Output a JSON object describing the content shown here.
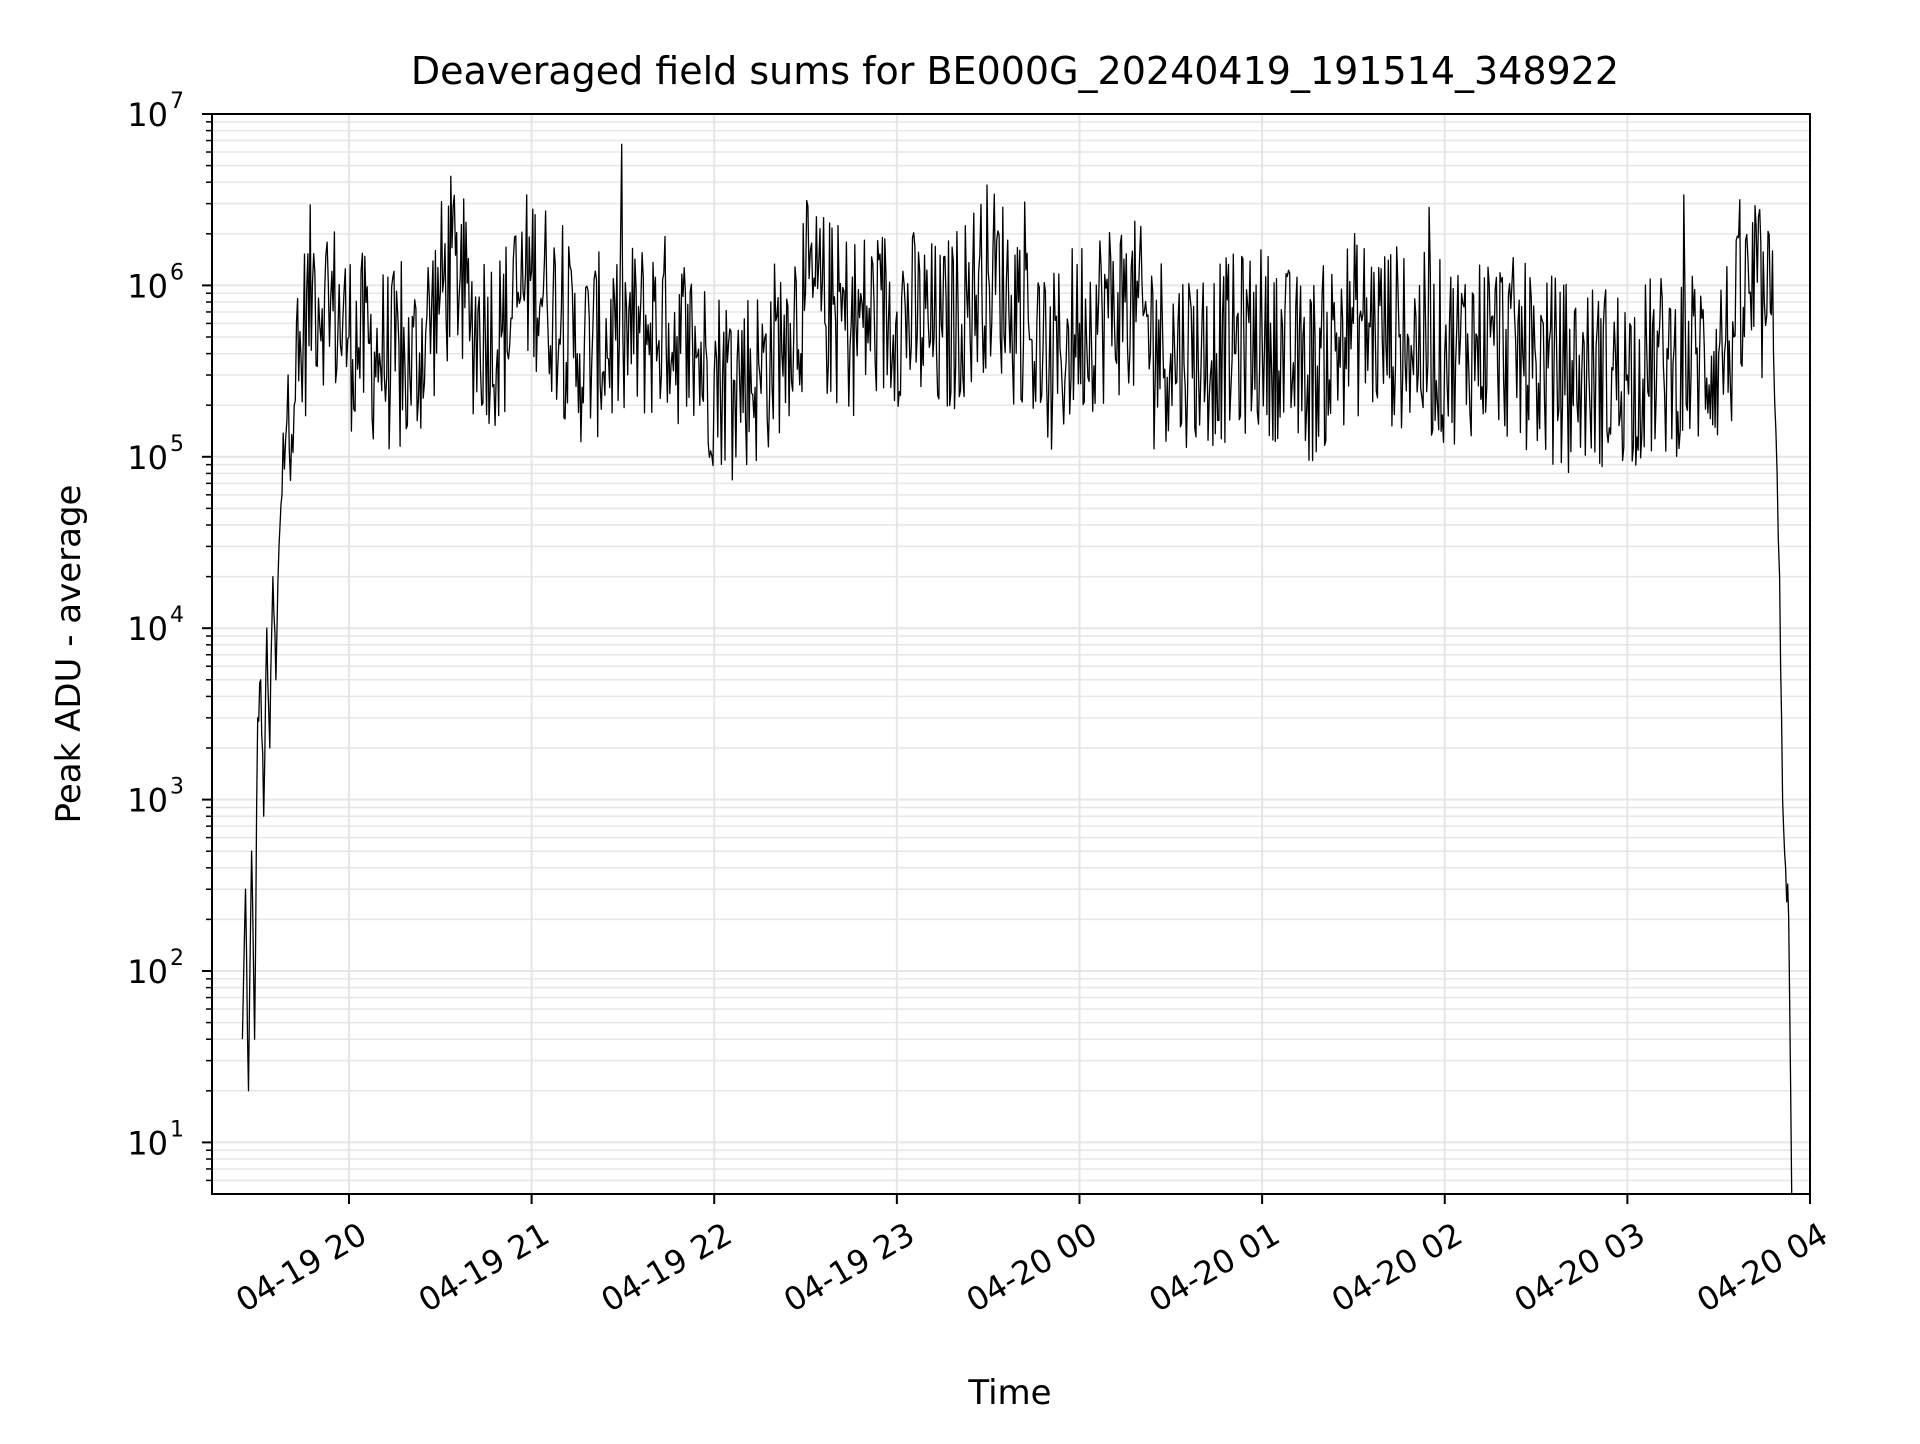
{
  "chart_data": {
    "type": "line",
    "title": "Deaveraged field sums for BE000G_20240419_191514_348922",
    "xlabel": "Time",
    "ylabel": "Peak ADU - average",
    "x_scale": "time",
    "y_scale": "log",
    "xlim": [
      "2024-04-19 19:15",
      "2024-04-20 04:00"
    ],
    "ylim": [
      5,
      10000000
    ],
    "x_ticks": [
      {
        "value": "2024-04-19 20:00",
        "label": "04-19 20"
      },
      {
        "value": "2024-04-19 21:00",
        "label": "04-19 21"
      },
      {
        "value": "2024-04-19 22:00",
        "label": "04-19 22"
      },
      {
        "value": "2024-04-19 23:00",
        "label": "04-19 23"
      },
      {
        "value": "2024-04-20 00:00",
        "label": "04-20 00"
      },
      {
        "value": "2024-04-20 01:00",
        "label": "04-20 01"
      },
      {
        "value": "2024-04-20 02:00",
        "label": "04-20 02"
      },
      {
        "value": "2024-04-20 03:00",
        "label": "04-20 03"
      },
      {
        "value": "2024-04-20 04:00",
        "label": "04-20 04"
      }
    ],
    "y_ticks": [
      {
        "value": 10,
        "base": "10",
        "exp": "1"
      },
      {
        "value": 100,
        "base": "10",
        "exp": "2"
      },
      {
        "value": 1000,
        "base": "10",
        "exp": "3"
      },
      {
        "value": 10000,
        "base": "10",
        "exp": "4"
      },
      {
        "value": 100000,
        "base": "10",
        "exp": "5"
      },
      {
        "value": 1000000,
        "base": "10",
        "exp": "6"
      },
      {
        "value": 10000000,
        "base": "10",
        "exp": "7"
      }
    ],
    "grid": true,
    "grid_color": "#e6e6e6",
    "line_color": "#000000",
    "series": [
      {
        "x": [
          "2024-04-19 19:25",
          "2024-04-19 19:26",
          "2024-04-19 19:27",
          "2024-04-19 19:28",
          "2024-04-19 19:29",
          "2024-04-19 19:30",
          "2024-04-19 19:31",
          "2024-04-19 19:32",
          "2024-04-19 19:33",
          "2024-04-19 19:34",
          "2024-04-19 19:35",
          "2024-04-19 19:36",
          "2024-04-19 19:37",
          "2024-04-19 19:38",
          "2024-04-19 19:40",
          "2024-04-19 19:42",
          "2024-04-19 19:45",
          "2024-04-19 19:48",
          "2024-04-19 19:52",
          "2024-04-19 20:00",
          "2024-04-19 20:10",
          "2024-04-19 20:20",
          "2024-04-19 20:30",
          "2024-04-19 20:35",
          "2024-04-19 20:40",
          "2024-04-19 20:50",
          "2024-04-19 21:00",
          "2024-04-19 21:05",
          "2024-04-19 21:15",
          "2024-04-19 21:30",
          "2024-04-19 21:45",
          "2024-04-19 22:00",
          "2024-04-19 22:15",
          "2024-04-19 22:25",
          "2024-04-19 22:30",
          "2024-04-19 22:45",
          "2024-04-19 23:00",
          "2024-04-19 23:15",
          "2024-04-19 23:30",
          "2024-04-19 23:40",
          "2024-04-19 23:50",
          "2024-04-20 00:00",
          "2024-04-20 00:15",
          "2024-04-20 00:30",
          "2024-04-20 00:45",
          "2024-04-20 01:00",
          "2024-04-20 01:15",
          "2024-04-20 01:30",
          "2024-04-20 01:45",
          "2024-04-20 02:00",
          "2024-04-20 02:15",
          "2024-04-20 02:30",
          "2024-04-20 02:45",
          "2024-04-20 03:00",
          "2024-04-20 03:15",
          "2024-04-20 03:30",
          "2024-04-20 03:35",
          "2024-04-20 03:40",
          "2024-04-20 03:45",
          "2024-04-20 03:47",
          "2024-04-20 03:48",
          "2024-04-20 03:50",
          "2024-04-20 03:51",
          "2024-04-20 03:52",
          "2024-04-20 03:53",
          "2024-04-20 03:54"
        ],
        "y": [
          40,
          300,
          20,
          500,
          40,
          3000,
          5000,
          800,
          10000,
          2000,
          20000,
          5000,
          30000,
          60000,
          300000,
          200000,
          500000,
          1000000,
          900000,
          500000,
          400000,
          300000,
          900000,
          1500000,
          600000,
          500000,
          1200000,
          900000,
          400000,
          500000,
          600000,
          300000,
          300000,
          600000,
          900000,
          600000,
          700000,
          500000,
          1200000,
          800000,
          300000,
          600000,
          800000,
          400000,
          400000,
          500000,
          300000,
          600000,
          500000,
          400000,
          500000,
          350000,
          300000,
          300000,
          350000,
          400000,
          500000,
          900000,
          800000,
          700000,
          400000,
          20000,
          1000,
          400,
          200,
          5
        ]
      }
    ]
  }
}
